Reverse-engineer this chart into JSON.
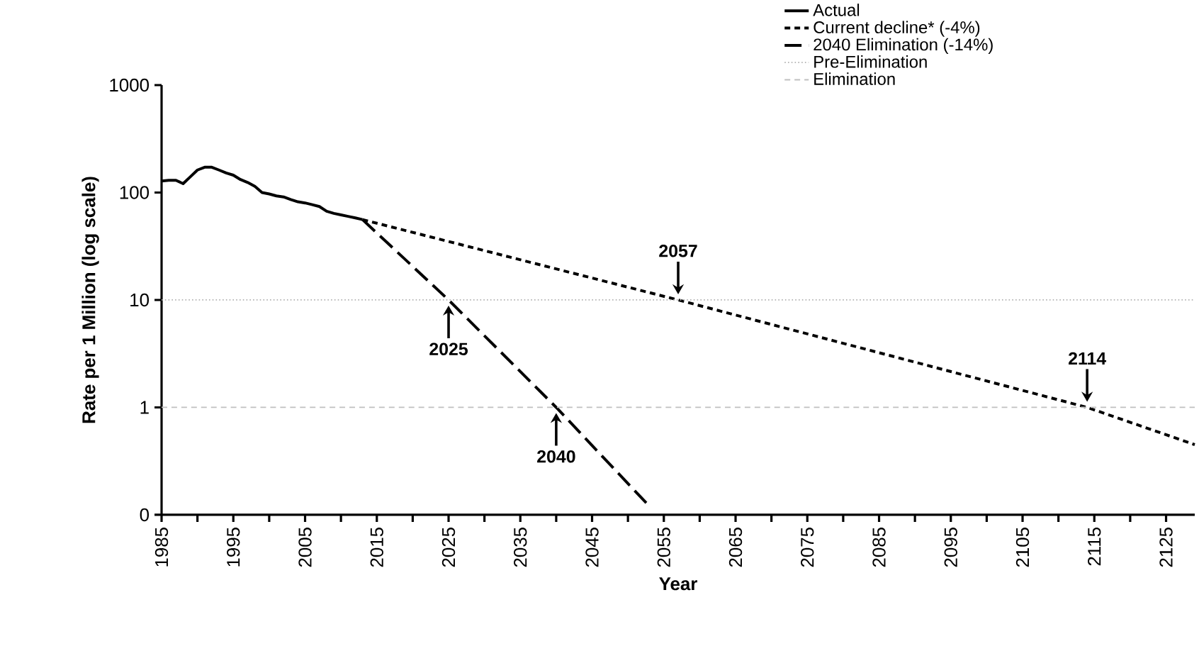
{
  "chart_data": {
    "type": "line",
    "xlabel": "Year",
    "ylabel": "Rate per 1 Million (log scale)",
    "log": "y",
    "xlim": [
      1985,
      2129
    ],
    "xticks": [
      1985,
      {
        "value": 1990,
        "label": null
      },
      1995,
      {
        "value": 2000,
        "label": null
      },
      2005,
      {
        "value": 2010,
        "label": null
      },
      2015,
      {
        "value": 2020,
        "label": null
      },
      2025,
      {
        "value": 2030,
        "label": null
      },
      2035,
      {
        "value": 2040,
        "label": null
      },
      2045,
      {
        "value": 2050,
        "label": null
      },
      2055,
      {
        "value": 2060,
        "label": null
      },
      2065,
      {
        "value": 2070,
        "label": null
      },
      2075,
      {
        "value": 2080,
        "label": null
      },
      2085,
      {
        "value": 2090,
        "label": null
      },
      2095,
      {
        "value": 2100,
        "label": null
      },
      2105,
      {
        "value": 2110,
        "label": null
      },
      2115,
      {
        "value": 2120,
        "label": null
      },
      2125
    ],
    "ylim": [
      0.1,
      1000
    ],
    "yticks": [
      {
        "value": 0.1,
        "label": "0"
      },
      1,
      10,
      100,
      1000
    ],
    "legend": "top right",
    "grid": false,
    "series": [
      {
        "name": "Actual",
        "color": "#000000",
        "line_style": "solid",
        "x": [
          1985,
          1986,
          1987,
          1988,
          1989,
          1990,
          1991,
          1992,
          1993,
          1994,
          1995,
          1996,
          1997,
          1998,
          1999,
          2000,
          2001,
          2002,
          2003,
          2004,
          2005,
          2006,
          2007,
          2008,
          2009,
          2010,
          2011,
          2012,
          2013
        ],
        "values": [
          128,
          130,
          130,
          121,
          140,
          162,
          172,
          172,
          162,
          152,
          145,
          132,
          124,
          114,
          100,
          97,
          93,
          91,
          86,
          82,
          80,
          77,
          74,
          67,
          64,
          62,
          60,
          58,
          56
        ]
      },
      {
        "name": "Current decline* (-4%)",
        "color": "#000000",
        "line_style": "dashed",
        "x": [
          2013,
          2057,
          2114,
          2129
        ],
        "values": [
          56,
          10,
          1,
          0.45
        ]
      },
      {
        "name": "2040 Elimination (-14%)",
        "color": "#000000",
        "line_style": "dashed",
        "x": [
          2013,
          2025,
          2040,
          2053
        ],
        "values": [
          56,
          10,
          1,
          0.12
        ]
      }
    ],
    "ref_lines": [
      {
        "axis": "y",
        "value": 10,
        "label": "Pre-Elimination",
        "color": "#b0b0b0",
        "line_style": "dotted"
      },
      {
        "axis": "y",
        "value": 1,
        "label": "Elimination",
        "color": "#c0c0c0",
        "line_style": "dashed"
      }
    ],
    "annotations": [
      {
        "text": "2057",
        "x": 2057,
        "y": 10
      },
      {
        "text": "2025",
        "x": 2025,
        "y": 10
      },
      {
        "text": "2114",
        "x": 2114,
        "y": 1
      },
      {
        "text": "2040",
        "x": 2040,
        "y": 1
      }
    ]
  }
}
